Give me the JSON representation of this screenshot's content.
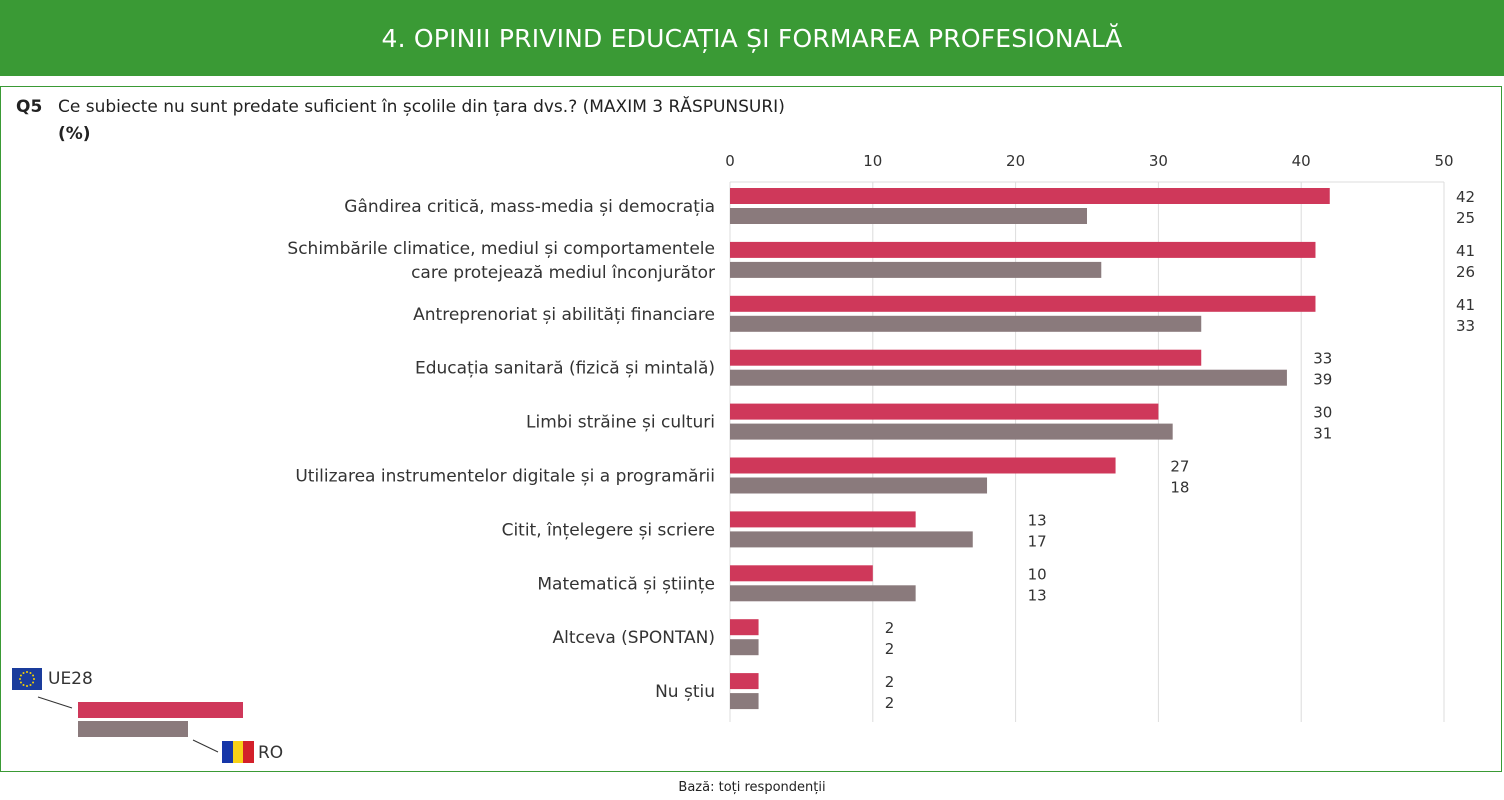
{
  "header": {
    "title": "4. OPINII PRIVIND EDUCAȚIA ȘI FORMAREA PROFESIONALĂ"
  },
  "question": {
    "number": "Q5",
    "text": "Ce subiecte nu sunt predate suficient în școlile din țara dvs.? (MAXIM 3 RĂSPUNSURI)",
    "unit": "(%)"
  },
  "legend": {
    "eu_label": "UE28",
    "ro_label": "RO"
  },
  "footer": {
    "base": "Bază: toți respondenții"
  },
  "colors": {
    "eu": "#cf385a",
    "ro": "#8a7a7c",
    "green": "#3a9a35"
  },
  "chart_data": {
    "type": "bar",
    "orientation": "horizontal",
    "xlim": [
      0,
      50
    ],
    "xticks": [
      0,
      10,
      20,
      30,
      40,
      50
    ],
    "grid": true,
    "categories": [
      [
        "Gândirea critică, mass-media și democrația"
      ],
      [
        "Schimbările climatice, mediul și comportamentele",
        "care protejează mediul înconjurător"
      ],
      [
        "Antreprenoriat și abilități financiare"
      ],
      [
        "Educația sanitară (fizică și mintală)"
      ],
      [
        "Limbi străine și culturi"
      ],
      [
        "Utilizarea instrumentelor digitale și a programării"
      ],
      [
        "Citit, înțelegere și scriere"
      ],
      [
        "Matematică și științe"
      ],
      [
        "Altceva (SPONTAN)"
      ],
      [
        "Nu știu"
      ]
    ],
    "series": [
      {
        "name": "UE28",
        "values": [
          42,
          41,
          41,
          33,
          30,
          27,
          13,
          10,
          2,
          2
        ]
      },
      {
        "name": "RO",
        "values": [
          25,
          26,
          33,
          39,
          31,
          18,
          17,
          13,
          2,
          2
        ]
      }
    ]
  }
}
